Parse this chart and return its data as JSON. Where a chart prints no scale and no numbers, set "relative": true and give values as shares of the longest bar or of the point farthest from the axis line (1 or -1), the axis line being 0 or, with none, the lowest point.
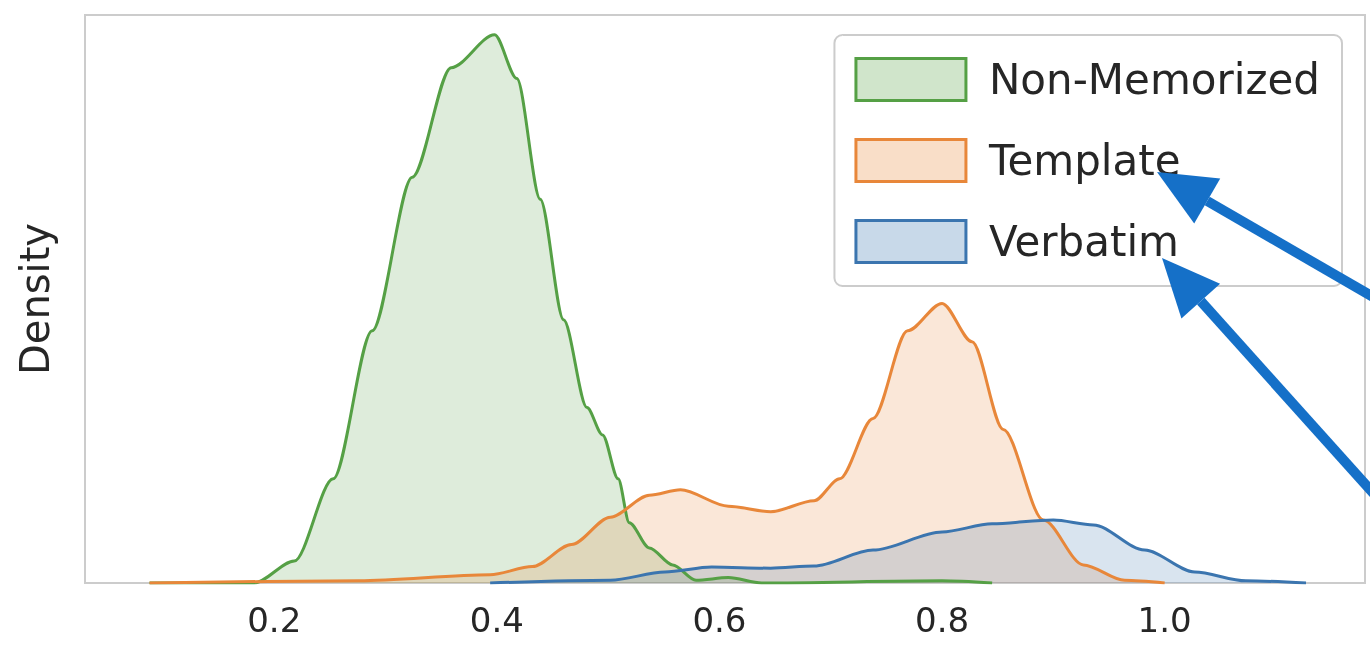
{
  "chart_data": {
    "type": "area",
    "ylabel": "Density",
    "relative": true,
    "xlim": [
      0.03,
      1.18
    ],
    "xticks": [
      {
        "value": 0.2,
        "label": "0.2"
      },
      {
        "value": 0.4,
        "label": "0.4"
      },
      {
        "value": 0.6,
        "label": "0.6"
      },
      {
        "value": 0.8,
        "label": "0.8"
      },
      {
        "value": 1.0,
        "label": "1.0"
      }
    ],
    "grid": false,
    "legend": "top right",
    "marker": "none",
    "line_style": "solid",
    "series": [
      {
        "name": "Non-Memorized",
        "color": "#55a045",
        "x": [
          0.088,
          0.182,
          0.218,
          0.253,
          0.288,
          0.324,
          0.359,
          0.398,
          0.418,
          0.439,
          0.46,
          0.481,
          0.495,
          0.509,
          0.519,
          0.537,
          0.558,
          0.579,
          0.608,
          0.638,
          0.8,
          0.845
        ],
        "values": [
          0,
          0,
          0.04,
          0.19,
          0.46,
          0.74,
          0.94,
          1.0,
          0.92,
          0.7,
          0.48,
          0.32,
          0.27,
          0.19,
          0.11,
          0.064,
          0.033,
          0.005,
          0.01,
          0,
          0.004,
          0
        ]
      },
      {
        "name": "Template",
        "color": "#e8873a",
        "x": [
          0.088,
          0.276,
          0.394,
          0.432,
          0.467,
          0.502,
          0.537,
          0.565,
          0.608,
          0.646,
          0.685,
          0.708,
          0.738,
          0.769,
          0.8,
          0.827,
          0.855,
          0.891,
          0.927,
          0.964,
          1.0
        ],
        "values": [
          0,
          0.004,
          0.015,
          0.03,
          0.07,
          0.12,
          0.16,
          0.17,
          0.14,
          0.13,
          0.15,
          0.19,
          0.3,
          0.46,
          0.51,
          0.44,
          0.28,
          0.115,
          0.033,
          0.005,
          0
        ]
      },
      {
        "name": "Verbatim",
        "color": "#3b75af",
        "x": [
          0.394,
          0.502,
          0.551,
          0.593,
          0.646,
          0.685,
          0.738,
          0.8,
          0.845,
          0.9,
          0.936,
          0.982,
          1.027,
          1.073,
          1.127
        ],
        "values": [
          0,
          0.005,
          0.02,
          0.029,
          0.027,
          0.031,
          0.06,
          0.093,
          0.108,
          0.115,
          0.106,
          0.06,
          0.02,
          0.004,
          0
        ]
      }
    ]
  }
}
